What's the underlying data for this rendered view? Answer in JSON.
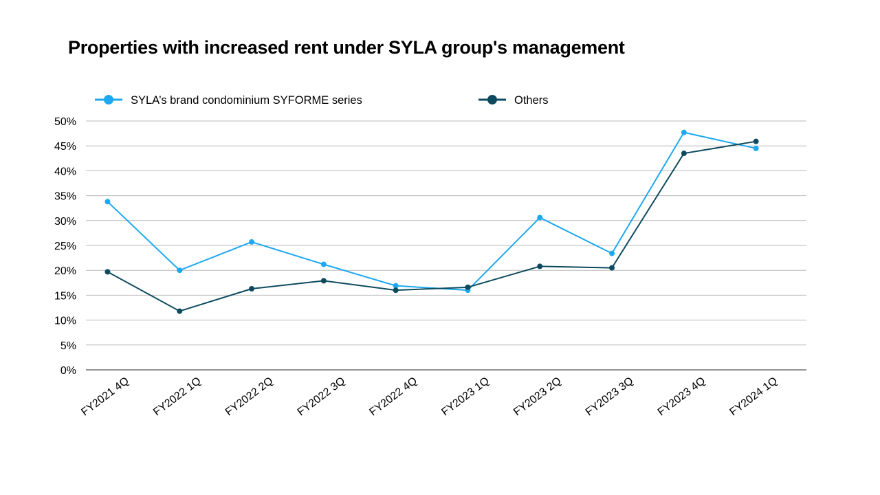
{
  "title": "Properties with increased rent under SYLA group's management",
  "chart_data": {
    "type": "line",
    "title": "Properties with increased rent under SYLA group's management",
    "categories": [
      "FY2021 4Q",
      "FY2022 1Q",
      "FY2022 2Q",
      "FY2022 3Q",
      "FY2022 4Q",
      "FY2023 1Q",
      "FY2023 2Q",
      "FY2023 3Q",
      "FY2023 4Q",
      "FY2024 1Q"
    ],
    "series": [
      {
        "name": "SYLA’s brand condominium SYFORME series",
        "color": "#1da8f0",
        "values": [
          33.8,
          20.0,
          25.7,
          21.2,
          16.9,
          16.0,
          30.6,
          23.4,
          47.7,
          44.5
        ]
      },
      {
        "name": "Others",
        "color": "#0d4a5e",
        "values": [
          19.7,
          11.8,
          16.3,
          17.9,
          16.0,
          16.6,
          20.8,
          20.5,
          43.5,
          45.9
        ]
      }
    ],
    "yticks": [
      "0%",
      "5%",
      "10%",
      "15%",
      "20%",
      "25%",
      "30%",
      "35%",
      "40%",
      "45%",
      "50%"
    ],
    "ylim": [
      0,
      50
    ],
    "grid": true,
    "legend": "top"
  }
}
